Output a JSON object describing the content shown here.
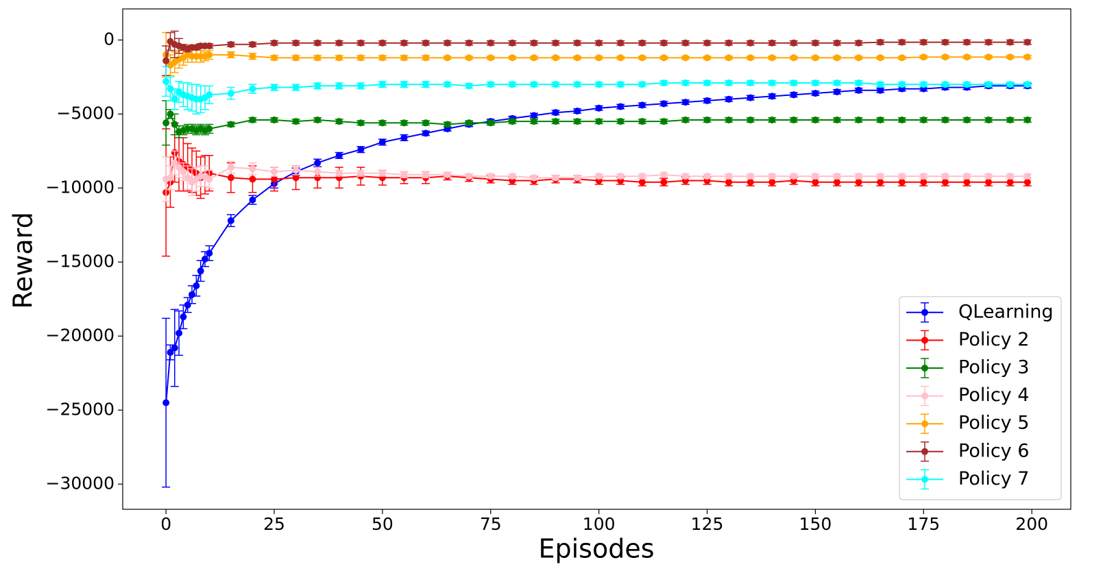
{
  "chart_data": {
    "type": "errorbar_line",
    "x_label": "Episodes",
    "y_label": "Reward",
    "xlim": [
      -10,
      209
    ],
    "ylim": [
      -31700,
      2100
    ],
    "xticks": [
      0,
      25,
      50,
      75,
      100,
      125,
      150,
      175,
      200
    ],
    "yticks": [
      {
        "value": -30000,
        "label": "−30000"
      },
      {
        "value": -25000,
        "label": "−25000"
      },
      {
        "value": -20000,
        "label": "−20000"
      },
      {
        "value": -15000,
        "label": "−15000"
      },
      {
        "value": -10000,
        "label": "−10000"
      },
      {
        "value": -5000,
        "label": "−5000"
      },
      0
    ],
    "legend": "lower right",
    "x": [
      0,
      1,
      2,
      3,
      4,
      5,
      6,
      7,
      8,
      9,
      10,
      15,
      20,
      25,
      30,
      35,
      40,
      45,
      50,
      55,
      60,
      65,
      70,
      75,
      80,
      85,
      90,
      95,
      100,
      105,
      110,
      115,
      120,
      125,
      130,
      135,
      140,
      145,
      150,
      155,
      160,
      165,
      170,
      175,
      180,
      185,
      190,
      195,
      199
    ],
    "series": [
      {
        "name": "QLearning",
        "color": "#0000ff",
        "values": [
          -24500,
          -21100,
          -20800,
          -19800,
          -18700,
          -17900,
          -17200,
          -16600,
          -15600,
          -14800,
          -14400,
          -12200,
          -10800,
          -9700,
          -8900,
          -8300,
          -7800,
          -7400,
          -6900,
          -6600,
          -6300,
          -6000,
          -5700,
          -5500,
          -5300,
          -5100,
          -4900,
          -4800,
          -4600,
          -4500,
          -4400,
          -4300,
          -4200,
          -4100,
          -4000,
          -3900,
          -3800,
          -3700,
          -3600,
          -3500,
          -3400,
          -3400,
          -3300,
          -3300,
          -3200,
          -3200,
          -3100,
          -3100,
          -3100
        ],
        "errors": [
          5700,
          500,
          2600,
          1500,
          800,
          500,
          600,
          700,
          700,
          500,
          500,
          400,
          300,
          300,
          250,
          250,
          200,
          200,
          200,
          200,
          150,
          150,
          150,
          150,
          150,
          150,
          150,
          150,
          150,
          150,
          150,
          150,
          150,
          150,
          150,
          150,
          150,
          150,
          150,
          150,
          150,
          150,
          150,
          150,
          150,
          150,
          150,
          150,
          150
        ]
      },
      {
        "name": "Policy 2",
        "color": "#ff0000",
        "values": [
          -10300,
          -9600,
          -7600,
          -8200,
          -8400,
          -8600,
          -8800,
          -9000,
          -9300,
          -9100,
          -9000,
          -9300,
          -9400,
          -9400,
          -9300,
          -9300,
          -9300,
          -9200,
          -9300,
          -9300,
          -9300,
          -9200,
          -9300,
          -9400,
          -9500,
          -9500,
          -9400,
          -9400,
          -9500,
          -9500,
          -9600,
          -9600,
          -9500,
          -9500,
          -9600,
          -9600,
          -9600,
          -9500,
          -9600,
          -9600,
          -9600,
          -9600,
          -9600,
          -9600,
          -9600,
          -9600,
          -9600,
          -9600,
          -9600
        ],
        "errors": [
          4300,
          1700,
          2000,
          2000,
          1800,
          1600,
          1500,
          1500,
          1400,
          1300,
          1200,
          1000,
          900,
          800,
          800,
          700,
          700,
          600,
          500,
          400,
          400,
          250,
          250,
          250,
          250,
          250,
          250,
          250,
          250,
          250,
          250,
          250,
          250,
          250,
          250,
          250,
          250,
          250,
          250,
          250,
          250,
          250,
          250,
          250,
          250,
          250,
          250,
          250,
          250
        ]
      },
      {
        "name": "Policy 3",
        "color": "#008000",
        "values": [
          -5600,
          -5000,
          -5700,
          -6200,
          -6100,
          -6000,
          -6000,
          -6100,
          -6000,
          -6100,
          -6000,
          -5700,
          -5400,
          -5400,
          -5500,
          -5400,
          -5500,
          -5600,
          -5600,
          -5600,
          -5600,
          -5700,
          -5600,
          -5600,
          -5500,
          -5500,
          -5500,
          -5500,
          -5500,
          -5500,
          -5500,
          -5500,
          -5400,
          -5400,
          -5400,
          -5400,
          -5400,
          -5400,
          -5400,
          -5400,
          -5400,
          -5400,
          -5400,
          -5400,
          -5400,
          -5400,
          -5400,
          -5400,
          -5400
        ],
        "errors": [
          1500,
          300,
          700,
          400,
          300,
          300,
          300,
          300,
          300,
          300,
          300,
          150,
          150,
          150,
          150,
          150,
          150,
          150,
          150,
          150,
          150,
          150,
          150,
          150,
          150,
          150,
          150,
          150,
          150,
          150,
          150,
          150,
          150,
          150,
          150,
          150,
          150,
          150,
          150,
          150,
          150,
          150,
          150,
          150,
          150,
          150,
          150,
          150,
          150
        ]
      },
      {
        "name": "Policy 4",
        "color": "#ffc0cb",
        "values": [
          -9400,
          -9300,
          -8300,
          -8600,
          -8900,
          -9300,
          -9600,
          -9400,
          -9200,
          -9200,
          -9400,
          -8600,
          -8700,
          -8900,
          -8800,
          -8900,
          -9000,
          -9000,
          -9000,
          -9100,
          -9100,
          -9100,
          -9200,
          -9200,
          -9200,
          -9300,
          -9300,
          -9300,
          -9200,
          -9200,
          -9200,
          -9100,
          -9200,
          -9200,
          -9200,
          -9200,
          -9200,
          -9200,
          -9200,
          -9200,
          -9200,
          -9200,
          -9200,
          -9200,
          -9200,
          -9200,
          -9200,
          -9200,
          -9200
        ],
        "errors": [
          1500,
          800,
          800,
          700,
          600,
          800,
          900,
          800,
          700,
          700,
          600,
          400,
          400,
          300,
          300,
          300,
          200,
          200,
          200,
          200,
          200,
          150,
          150,
          150,
          150,
          150,
          150,
          150,
          150,
          150,
          150,
          150,
          150,
          150,
          150,
          150,
          150,
          150,
          150,
          150,
          150,
          150,
          150,
          150,
          150,
          150,
          150,
          150,
          150
        ]
      },
      {
        "name": "Policy 5",
        "color": "#ffa500",
        "values": [
          -1000,
          -1700,
          -1500,
          -1300,
          -1200,
          -1000,
          -1100,
          -1100,
          -1100,
          -1100,
          -1000,
          -1000,
          -1100,
          -1200,
          -1200,
          -1200,
          -1200,
          -1200,
          -1200,
          -1200,
          -1200,
          -1200,
          -1200,
          -1200,
          -1200,
          -1200,
          -1200,
          -1200,
          -1200,
          -1200,
          -1200,
          -1200,
          -1200,
          -1200,
          -1200,
          -1200,
          -1200,
          -1200,
          -1200,
          -1200,
          -1200,
          -1200,
          -1200,
          -1150,
          -1150,
          -1150,
          -1150,
          -1150,
          -1150
        ],
        "errors": [
          1500,
          700,
          700,
          600,
          500,
          500,
          400,
          400,
          400,
          300,
          300,
          200,
          200,
          150,
          150,
          150,
          150,
          150,
          150,
          150,
          150,
          100,
          100,
          100,
          100,
          100,
          100,
          100,
          100,
          100,
          100,
          100,
          100,
          100,
          100,
          100,
          100,
          100,
          100,
          100,
          100,
          100,
          100,
          100,
          100,
          100,
          100,
          100,
          100
        ]
      },
      {
        "name": "Policy 6",
        "color": "#a52a2a",
        "values": [
          -1400,
          -100,
          -300,
          -400,
          -500,
          -600,
          -500,
          -500,
          -400,
          -400,
          -400,
          -300,
          -300,
          -200,
          -200,
          -200,
          -200,
          -200,
          -200,
          -200,
          -200,
          -200,
          -200,
          -200,
          -200,
          -200,
          -200,
          -200,
          -200,
          -200,
          -200,
          -200,
          -200,
          -200,
          -200,
          -200,
          -200,
          -200,
          -200,
          -200,
          -200,
          -150,
          -150,
          -150,
          -150,
          -150,
          -150,
          -150,
          -150
        ],
        "errors": [
          1000,
          600,
          900,
          500,
          200,
          200,
          150,
          150,
          150,
          150,
          150,
          150,
          150,
          150,
          150,
          150,
          150,
          150,
          150,
          150,
          150,
          150,
          150,
          150,
          150,
          150,
          150,
          150,
          150,
          150,
          150,
          150,
          150,
          150,
          150,
          150,
          150,
          150,
          150,
          150,
          150,
          150,
          150,
          150,
          150,
          150,
          150,
          150,
          150
        ]
      },
      {
        "name": "Policy 7",
        "color": "#00ffff",
        "values": [
          -2800,
          -3300,
          -4000,
          -3500,
          -3700,
          -3800,
          -3900,
          -4000,
          -4000,
          -3900,
          -3700,
          -3600,
          -3300,
          -3200,
          -3200,
          -3100,
          -3100,
          -3100,
          -3000,
          -3000,
          -3000,
          -3000,
          -3100,
          -3000,
          -3000,
          -3000,
          -3000,
          -3000,
          -3000,
          -3000,
          -3000,
          -2900,
          -2900,
          -2900,
          -2900,
          -2900,
          -2900,
          -2900,
          -2900,
          -2900,
          -2900,
          -3000,
          -3000,
          -3000,
          -3000,
          -3000,
          -3000,
          -3000,
          -3000
        ],
        "errors": [
          1000,
          800,
          700,
          700,
          800,
          900,
          900,
          1000,
          900,
          800,
          600,
          400,
          300,
          200,
          200,
          200,
          200,
          200,
          200,
          200,
          200,
          150,
          150,
          150,
          150,
          150,
          150,
          150,
          150,
          150,
          150,
          150,
          150,
          150,
          150,
          150,
          150,
          150,
          150,
          150,
          150,
          150,
          150,
          150,
          150,
          150,
          150,
          150,
          150
        ]
      }
    ]
  }
}
